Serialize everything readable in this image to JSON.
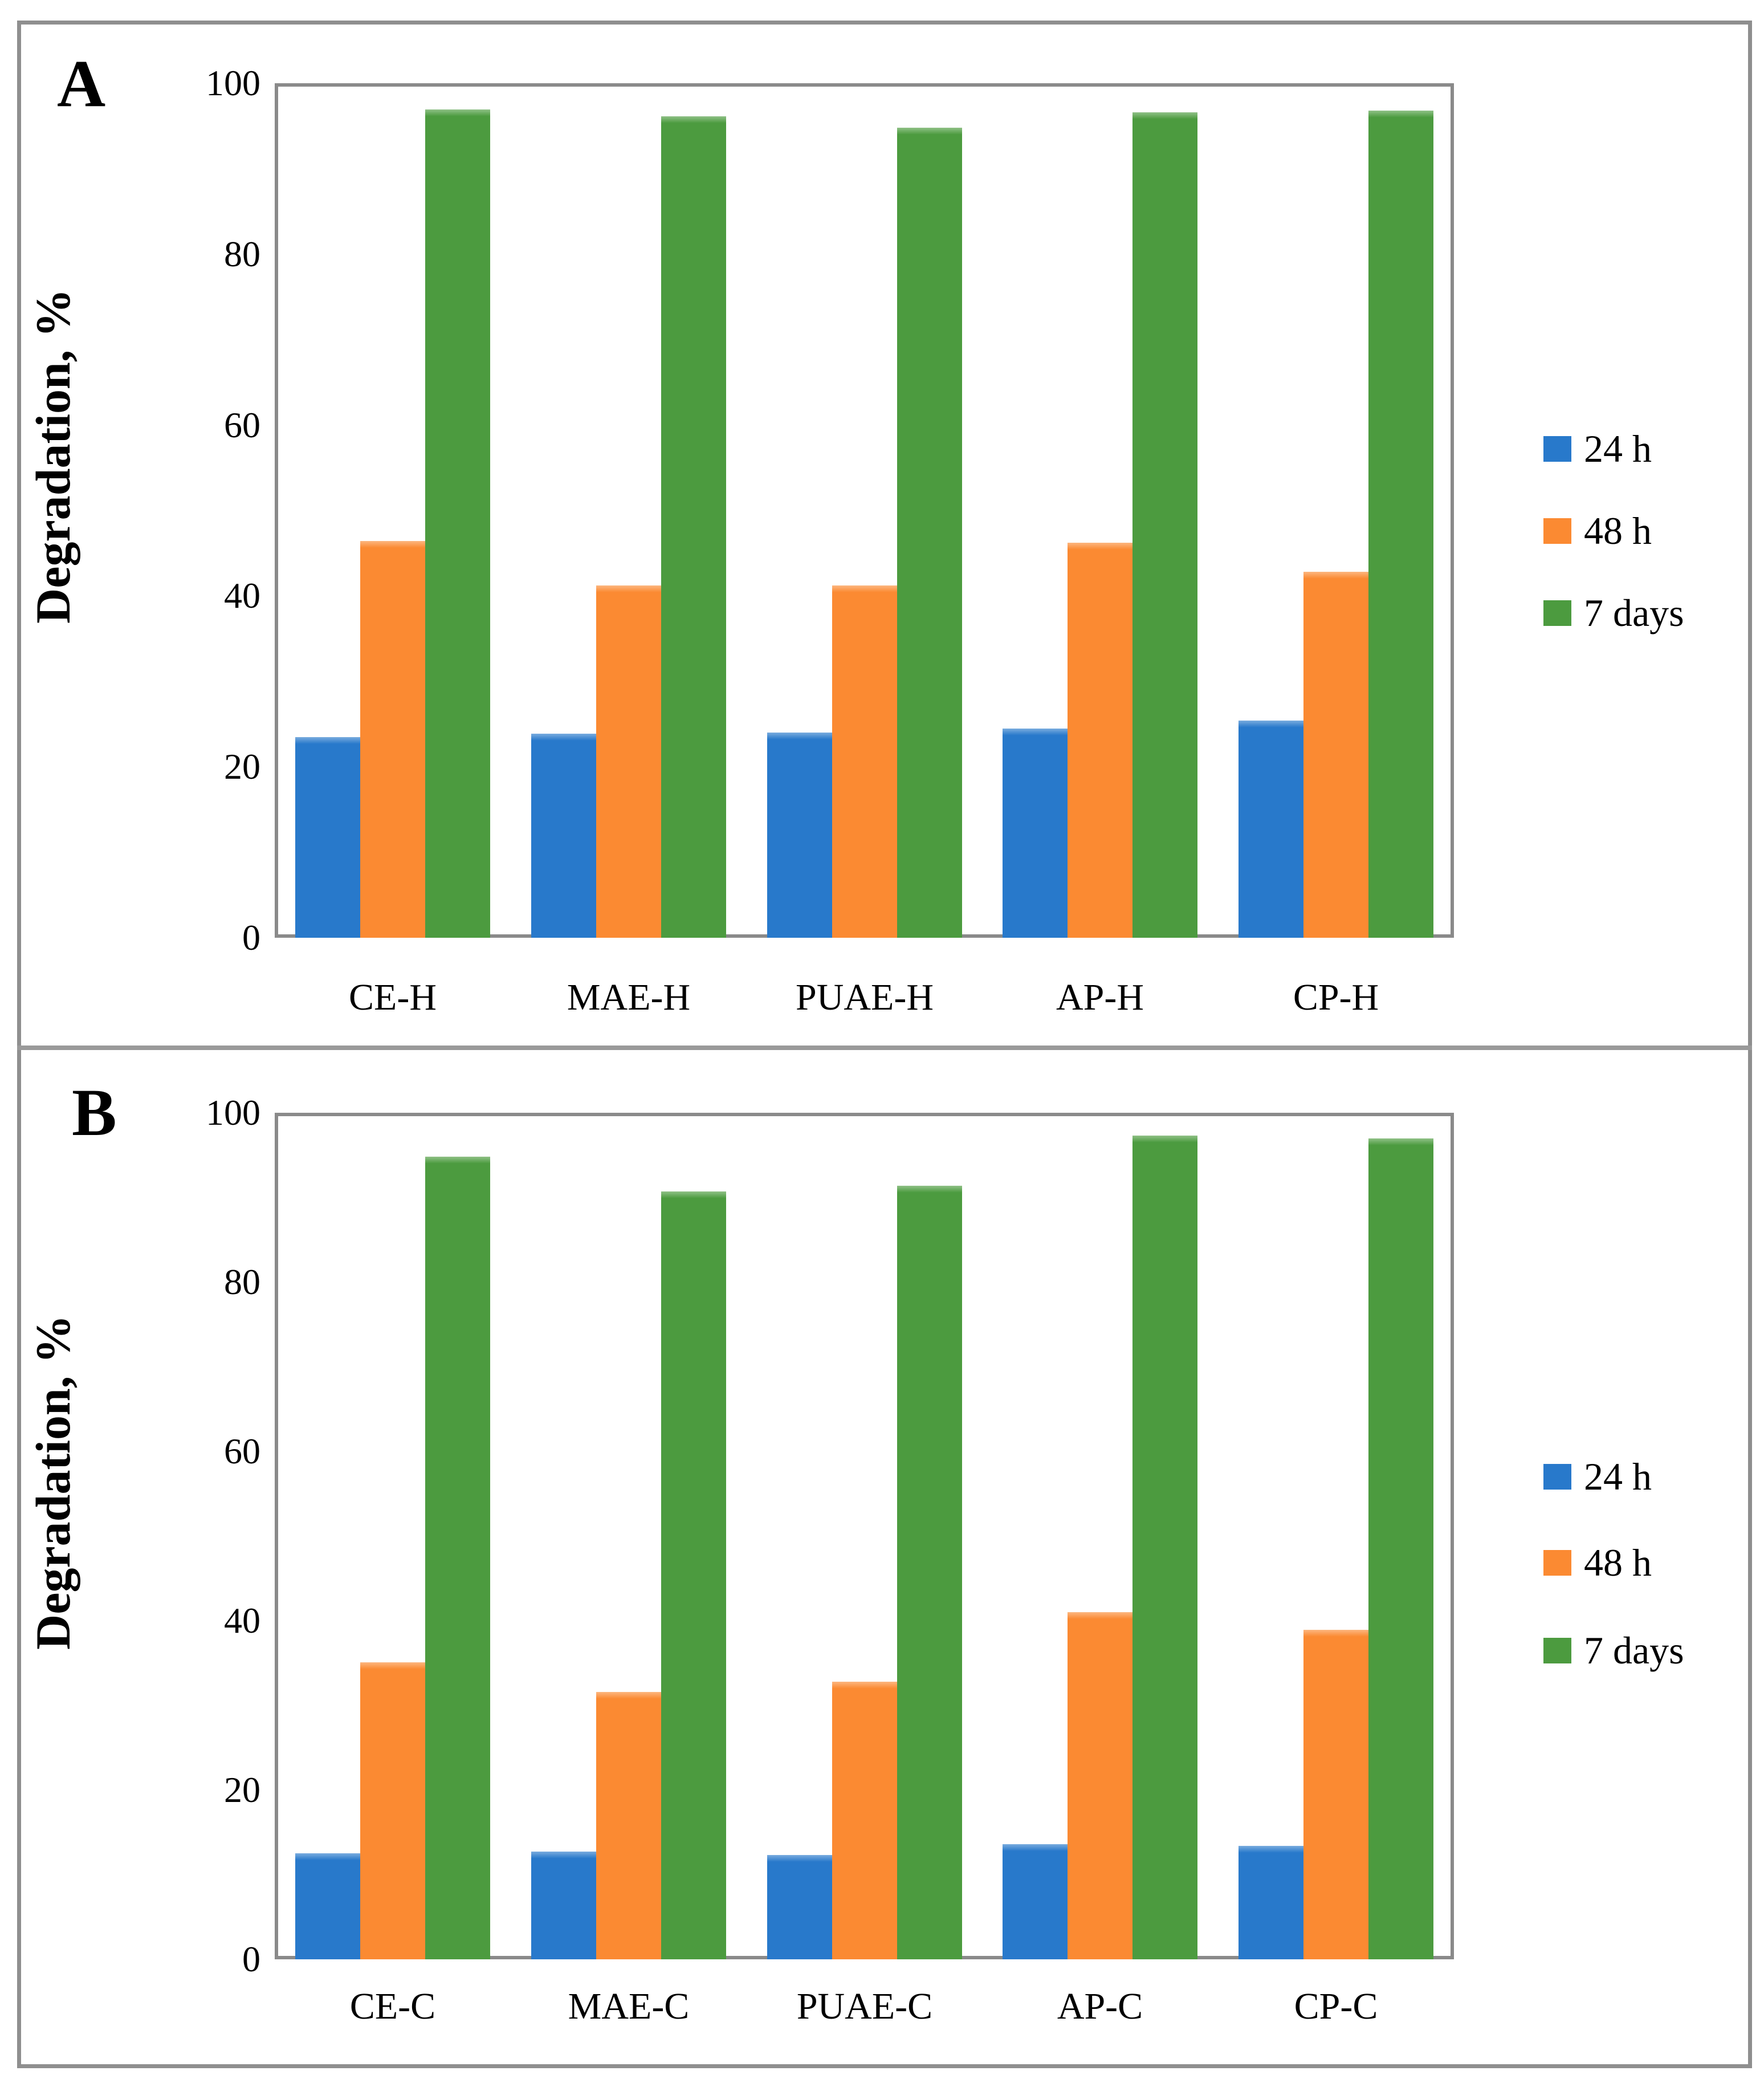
{
  "figure_title": "",
  "colors": {
    "series_24h": "#2879cb",
    "series_48h": "#fb8a32",
    "series_7days": "#4c9b3f",
    "frame_gray": "#8a8a8a",
    "border_gray": "#8f8f8f"
  },
  "chart_data": [
    {
      "type": "bar",
      "panel": "A",
      "categories": [
        "CE-H",
        "MAE-H",
        "PUAE-H",
        "AP-H",
        "CP-H"
      ],
      "series": [
        {
          "name": "24 h",
          "color": "#2879cb",
          "values": [
            23.5,
            23.9,
            24.0,
            24.5,
            25.4
          ]
        },
        {
          "name": "48 h",
          "color": "#fb8a32",
          "values": [
            46.4,
            41.2,
            41.2,
            46.2,
            42.8
          ]
        },
        {
          "name": "7 days",
          "color": "#4c9b3f",
          "values": [
            96.9,
            96.1,
            94.8,
            96.6,
            96.8
          ]
        }
      ],
      "xlabel": "",
      "ylabel": "Degradation, %",
      "ylim": [
        0,
        100
      ],
      "yticks": [
        0,
        20,
        40,
        60,
        80,
        100
      ],
      "grid": false,
      "legend_position": "right"
    },
    {
      "type": "bar",
      "panel": "B",
      "categories": [
        "CE-C",
        "MAE-C",
        "PUAE-C",
        "AP-C",
        "CP-C"
      ],
      "series": [
        {
          "name": "24 h",
          "color": "#2879cb",
          "values": [
            12.5,
            12.7,
            12.3,
            13.6,
            13.4
          ]
        },
        {
          "name": "48 h",
          "color": "#fb8a32",
          "values": [
            35.1,
            31.6,
            32.8,
            41.0,
            38.9
          ]
        },
        {
          "name": "7 days",
          "color": "#4c9b3f",
          "values": [
            94.8,
            90.7,
            91.4,
            97.3,
            97.0
          ]
        }
      ],
      "xlabel": "",
      "ylabel": "Degradation, %",
      "ylim": [
        0,
        100
      ],
      "yticks": [
        0,
        20,
        40,
        60,
        80,
        100
      ],
      "grid": false,
      "legend_position": "right"
    }
  ]
}
